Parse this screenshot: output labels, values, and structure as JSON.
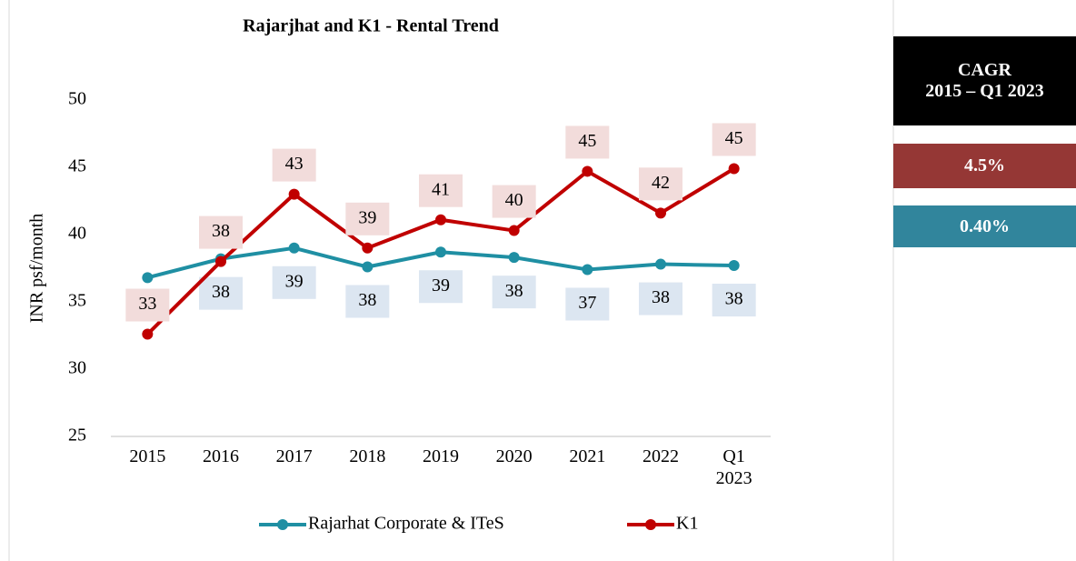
{
  "chart_data": {
    "type": "line",
    "title": "Rajarjhat and K1 -  Rental Trend",
    "y_label": "INR psf/month",
    "categories": [
      "2015",
      "2016",
      "2017",
      "2018",
      "2019",
      "2020",
      "2021",
      "2022",
      "Q1 2023"
    ],
    "series": [
      {
        "name": "Rajarhat Corporate & ITeS",
        "color": "#1f8fa3",
        "label_fill": "#dce6f1",
        "values": [
          36.8,
          38.2,
          39.0,
          37.6,
          38.7,
          38.3,
          37.4,
          37.8,
          37.7
        ],
        "value_labels": [
          null,
          "38",
          "39",
          "38",
          "39",
          "38",
          "37",
          "38",
          "38"
        ]
      },
      {
        "name": "K1",
        "color": "#c00000",
        "label_fill": "#f2dcdb",
        "values": [
          32.6,
          38.0,
          43.0,
          39.0,
          41.1,
          40.3,
          44.7,
          41.6,
          44.9
        ],
        "value_labels": [
          "33",
          "38",
          "43",
          "39",
          "41",
          "40",
          "45",
          "42",
          "45"
        ]
      }
    ],
    "ylim": [
      25,
      50
    ],
    "yticks": [
      25,
      30,
      35,
      40,
      45,
      50
    ],
    "grid": false,
    "legend": "bottom"
  },
  "side_panel": {
    "title": [
      "CAGR",
      "2015 – Q1 2023"
    ],
    "items": [
      "4.5%",
      "0.40%"
    ]
  }
}
